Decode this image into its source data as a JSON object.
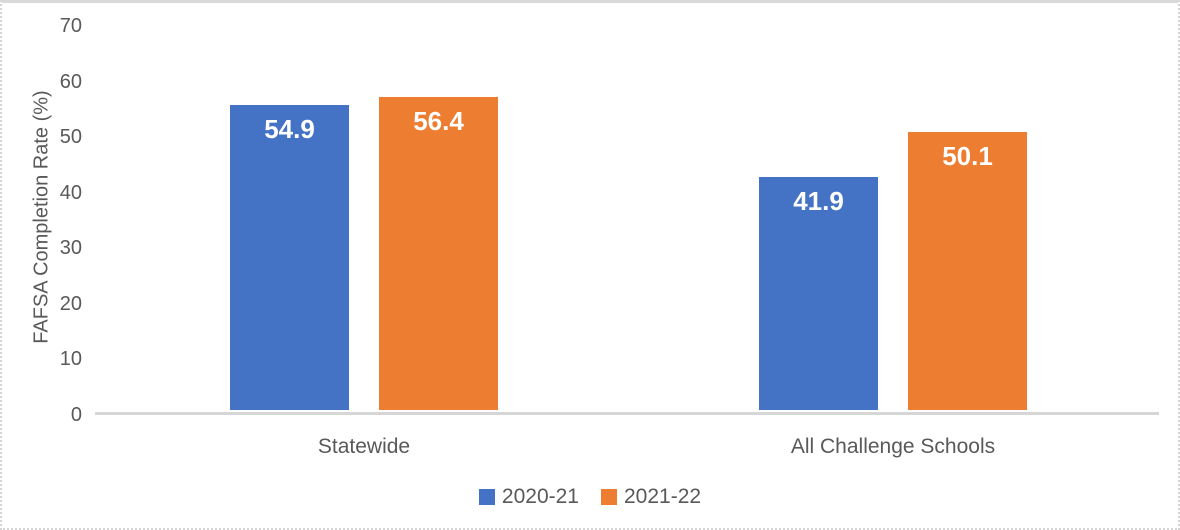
{
  "chart_data": {
    "type": "bar",
    "categories": [
      "Statewide",
      "All Challenge Schools"
    ],
    "series": [
      {
        "name": "2020-21",
        "color": "#4472C4",
        "values": [
          54.9,
          41.9
        ]
      },
      {
        "name": "2021-22",
        "color": "#ED7D31",
        "values": [
          56.4,
          50.1
        ]
      }
    ],
    "title": "",
    "xlabel": "",
    "ylabel": "FAFSA Completion Rate (%)",
    "ylim": [
      0,
      70
    ],
    "yticks": [
      0,
      10,
      20,
      30,
      40,
      50,
      60,
      70
    ],
    "grid": false,
    "legend_position": "bottom",
    "data_labels": "inside-end",
    "colors": {
      "series1": "#4472C4",
      "series2": "#ED7D31",
      "text": "#595959",
      "axis_line": "#D6D6D6",
      "data_label_text": "#FFFFFF"
    }
  }
}
